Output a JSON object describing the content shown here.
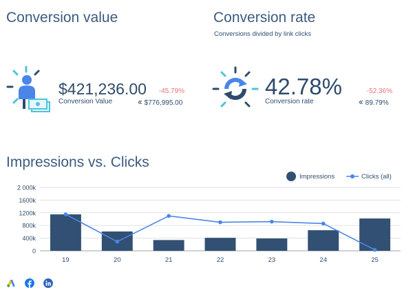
{
  "conversion_value": {
    "title": "Conversion value",
    "value": "$421,236.00",
    "label": "Conversion Value",
    "delta": "-45.79%",
    "previous": "$776,995.00"
  },
  "conversion_rate": {
    "title": "Conversion rate",
    "subtitle": "Conversions divided by link clicks",
    "value": "42.78%",
    "label": "Conversion rate",
    "delta": "-52.36%",
    "previous": "89.79%"
  },
  "colors": {
    "bars": "#325073",
    "line": "#4a86e8",
    "negative": "#e8737a",
    "accent_cyan": "#4dc3dc"
  },
  "icons": {
    "conversion_value": "person-money-icon",
    "conversion_rate": "refresh-cycle-icon",
    "previous": "double-chevron-left-icon"
  },
  "chart_data": {
    "type": "bar",
    "title": "Impressions vs. Clicks",
    "categories": [
      "19",
      "20",
      "21",
      "22",
      "23",
      "24",
      "25"
    ],
    "series": [
      {
        "name": "Impressions",
        "type": "bar",
        "values": [
          1150000,
          610000,
          340000,
          410000,
          390000,
          650000,
          1020000
        ]
      },
      {
        "name": "Clicks (all)",
        "type": "line",
        "values": [
          1150000,
          290000,
          1100000,
          900000,
          920000,
          860000,
          30000
        ]
      }
    ],
    "y_ticks": [
      "0",
      "400k",
      "800k",
      "1200k",
      "1600k",
      "2 000k"
    ],
    "ylim": [
      0,
      2000000
    ],
    "grid": true,
    "legend": "top-right"
  },
  "sources": [
    "google-ads-icon",
    "facebook-icon",
    "linkedin-icon"
  ]
}
